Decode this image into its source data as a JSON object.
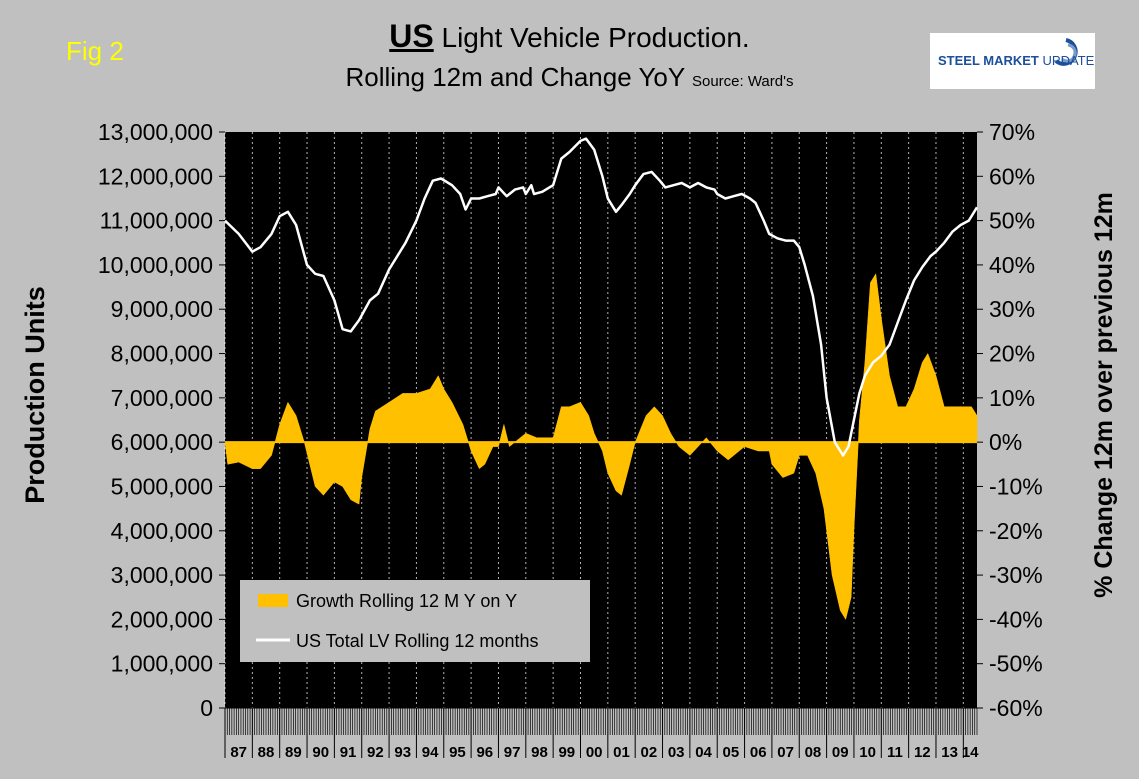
{
  "figure": {
    "label": "Fig 2",
    "title_prefix": "US",
    "title_main": "Light Vehicle Production.",
    "subtitle": "Rolling 12m and Change YoY",
    "source": "Source: Ward's",
    "logo_bold": "STEEL MARKET",
    "logo_light": "UPDATE"
  },
  "colors": {
    "background": "#c0c0c0",
    "plot_background": "#000000",
    "gridline": "#ffffff",
    "bars": "#ffc000",
    "line": "#ffffff",
    "legend_background": "#c0c0c0",
    "fig_label": "#ffff00",
    "logo_text": "#1c4f9c"
  },
  "chart_data": {
    "type": "bar+line",
    "title": "US Light Vehicle Production. Rolling 12m and Change YoY",
    "ylabel_left": "Production Units",
    "ylabel_right": "% Change 12m over previous 12m",
    "ylim_left": [
      0,
      13000000
    ],
    "ylim_right": [
      -60,
      70
    ],
    "yticks_left": [
      "0",
      "1,000,000",
      "2,000,000",
      "3,000,000",
      "4,000,000",
      "5,000,000",
      "6,000,000",
      "7,000,000",
      "8,000,000",
      "9,000,000",
      "10,000,000",
      "11,000,000",
      "12,000,000",
      "13,000,000"
    ],
    "yticks_right": [
      "-60%",
      "-50%",
      "-40%",
      "-30%",
      "-20%",
      "-10%",
      "0%",
      "10%",
      "20%",
      "30%",
      "40%",
      "50%",
      "60%",
      "70%"
    ],
    "grid": "vertical gridlines at each year",
    "x_start": 1987.0,
    "x_end": 2014.5,
    "categories": [
      "87",
      "88",
      "89",
      "90",
      "91",
      "92",
      "93",
      "94",
      "95",
      "96",
      "97",
      "98",
      "99",
      "00",
      "01",
      "02",
      "03",
      "04",
      "05",
      "06",
      "07",
      "08",
      "09",
      "10",
      "11",
      "12",
      "13",
      "14"
    ],
    "legend_position": "bottom-left",
    "series": [
      {
        "name": "Growth Rolling 12 M Y on Y",
        "kind": "bar",
        "axis": "right",
        "points": [
          [
            1987.0,
            0
          ],
          [
            1987.1,
            -5
          ],
          [
            1987.5,
            -4.5
          ],
          [
            1988.0,
            -6
          ],
          [
            1988.3,
            -6
          ],
          [
            1988.7,
            -3
          ],
          [
            1989.0,
            4
          ],
          [
            1989.3,
            9
          ],
          [
            1989.6,
            6
          ],
          [
            1989.9,
            0
          ],
          [
            1990.3,
            -10
          ],
          [
            1990.6,
            -12
          ],
          [
            1991.0,
            -9
          ],
          [
            1991.3,
            -10
          ],
          [
            1991.6,
            -13
          ],
          [
            1991.9,
            -14
          ],
          [
            1992.0,
            -8
          ],
          [
            1992.3,
            3
          ],
          [
            1992.5,
            7
          ],
          [
            1993.0,
            9
          ],
          [
            1993.5,
            11
          ],
          [
            1994.0,
            11
          ],
          [
            1994.5,
            12
          ],
          [
            1994.8,
            15
          ],
          [
            1995.0,
            12
          ],
          [
            1995.3,
            9
          ],
          [
            1995.7,
            4
          ],
          [
            1996.0,
            -2
          ],
          [
            1996.3,
            -6
          ],
          [
            1996.5,
            -5
          ],
          [
            1996.8,
            -1
          ],
          [
            1997.0,
            -1
          ],
          [
            1997.2,
            4
          ],
          [
            1997.4,
            -1
          ],
          [
            1997.8,
            1
          ],
          [
            1998.0,
            2
          ],
          [
            1998.4,
            1
          ],
          [
            1998.8,
            1
          ],
          [
            1999.0,
            1
          ],
          [
            1999.3,
            8
          ],
          [
            1999.6,
            8
          ],
          [
            2000.0,
            9
          ],
          [
            2000.3,
            6
          ],
          [
            2000.5,
            2
          ],
          [
            2000.8,
            -2
          ],
          [
            2001.0,
            -7
          ],
          [
            2001.3,
            -11
          ],
          [
            2001.5,
            -12
          ],
          [
            2001.8,
            -5
          ],
          [
            2002.0,
            0
          ],
          [
            2002.4,
            6
          ],
          [
            2002.7,
            8
          ],
          [
            2003.0,
            6
          ],
          [
            2003.3,
            2
          ],
          [
            2003.6,
            -1
          ],
          [
            2004.0,
            -3
          ],
          [
            2004.3,
            -1
          ],
          [
            2004.6,
            1
          ],
          [
            2005.0,
            -2
          ],
          [
            2005.4,
            -4
          ],
          [
            2005.8,
            -2
          ],
          [
            2006.0,
            -1
          ],
          [
            2006.5,
            -2
          ],
          [
            2006.9,
            -2
          ],
          [
            2007.0,
            -5
          ],
          [
            2007.4,
            -8
          ],
          [
            2007.8,
            -7
          ],
          [
            2008.0,
            -3
          ],
          [
            2008.3,
            -3
          ],
          [
            2008.6,
            -7
          ],
          [
            2008.9,
            -15
          ],
          [
            2009.2,
            -30
          ],
          [
            2009.5,
            -38
          ],
          [
            2009.7,
            -40
          ],
          [
            2009.9,
            -35
          ],
          [
            2010.0,
            -20
          ],
          [
            2010.2,
            5
          ],
          [
            2010.4,
            18
          ],
          [
            2010.6,
            36
          ],
          [
            2010.8,
            38
          ],
          [
            2011.0,
            28
          ],
          [
            2011.3,
            15
          ],
          [
            2011.6,
            8
          ],
          [
            2011.9,
            8
          ],
          [
            2012.2,
            12
          ],
          [
            2012.5,
            18
          ],
          [
            2012.7,
            20
          ],
          [
            2013.0,
            15
          ],
          [
            2013.3,
            8
          ],
          [
            2013.6,
            8
          ],
          [
            2014.0,
            8
          ],
          [
            2014.3,
            8
          ],
          [
            2014.5,
            6
          ]
        ]
      },
      {
        "name": "US Total LV Rolling 12 months",
        "kind": "line",
        "axis": "left",
        "points": [
          [
            1987.0,
            11000000
          ],
          [
            1987.5,
            10700000
          ],
          [
            1988.0,
            10300000
          ],
          [
            1988.3,
            10400000
          ],
          [
            1988.7,
            10700000
          ],
          [
            1989.0,
            11100000
          ],
          [
            1989.3,
            11200000
          ],
          [
            1989.6,
            10900000
          ],
          [
            1990.0,
            10000000
          ],
          [
            1990.3,
            9800000
          ],
          [
            1990.6,
            9750000
          ],
          [
            1991.0,
            9200000
          ],
          [
            1991.3,
            8550000
          ],
          [
            1991.6,
            8500000
          ],
          [
            1991.9,
            8750000
          ],
          [
            1992.3,
            9200000
          ],
          [
            1992.6,
            9350000
          ],
          [
            1993.0,
            9900000
          ],
          [
            1993.3,
            10200000
          ],
          [
            1993.6,
            10500000
          ],
          [
            1994.0,
            11000000
          ],
          [
            1994.3,
            11500000
          ],
          [
            1994.6,
            11900000
          ],
          [
            1994.9,
            11950000
          ],
          [
            1995.3,
            11800000
          ],
          [
            1995.6,
            11600000
          ],
          [
            1995.8,
            11250000
          ],
          [
            1996.0,
            11500000
          ],
          [
            1996.3,
            11500000
          ],
          [
            1996.6,
            11550000
          ],
          [
            1996.9,
            11600000
          ],
          [
            1997.0,
            11750000
          ],
          [
            1997.3,
            11550000
          ],
          [
            1997.6,
            11700000
          ],
          [
            1997.9,
            11750000
          ],
          [
            1998.0,
            11600000
          ],
          [
            1998.2,
            11800000
          ],
          [
            1998.3,
            11600000
          ],
          [
            1998.6,
            11650000
          ],
          [
            1999.0,
            11800000
          ],
          [
            1999.3,
            12400000
          ],
          [
            1999.6,
            12550000
          ],
          [
            2000.0,
            12800000
          ],
          [
            2000.2,
            12850000
          ],
          [
            2000.5,
            12600000
          ],
          [
            2000.8,
            12000000
          ],
          [
            2001.0,
            11500000
          ],
          [
            2001.3,
            11200000
          ],
          [
            2001.5,
            11350000
          ],
          [
            2001.8,
            11600000
          ],
          [
            2002.0,
            11800000
          ],
          [
            2002.3,
            12050000
          ],
          [
            2002.6,
            12100000
          ],
          [
            2002.9,
            11900000
          ],
          [
            2003.1,
            11750000
          ],
          [
            2003.4,
            11800000
          ],
          [
            2003.7,
            11850000
          ],
          [
            2004.0,
            11750000
          ],
          [
            2004.3,
            11850000
          ],
          [
            2004.6,
            11750000
          ],
          [
            2004.9,
            11700000
          ],
          [
            2005.0,
            11600000
          ],
          [
            2005.3,
            11500000
          ],
          [
            2005.6,
            11550000
          ],
          [
            2005.9,
            11600000
          ],
          [
            2006.2,
            11500000
          ],
          [
            2006.4,
            11400000
          ],
          [
            2006.7,
            11000000
          ],
          [
            2006.9,
            10700000
          ],
          [
            2007.2,
            10600000
          ],
          [
            2007.5,
            10550000
          ],
          [
            2007.8,
            10550000
          ],
          [
            2008.0,
            10400000
          ],
          [
            2008.2,
            10000000
          ],
          [
            2008.5,
            9300000
          ],
          [
            2008.8,
            8200000
          ],
          [
            2009.0,
            7000000
          ],
          [
            2009.3,
            6000000
          ],
          [
            2009.6,
            5700000
          ],
          [
            2009.8,
            5900000
          ],
          [
            2010.0,
            6500000
          ],
          [
            2010.2,
            7100000
          ],
          [
            2010.4,
            7500000
          ],
          [
            2010.7,
            7800000
          ],
          [
            2011.0,
            7950000
          ],
          [
            2011.3,
            8200000
          ],
          [
            2011.6,
            8700000
          ],
          [
            2011.9,
            9200000
          ],
          [
            2012.2,
            9650000
          ],
          [
            2012.5,
            9950000
          ],
          [
            2012.8,
            10200000
          ],
          [
            2013.0,
            10300000
          ],
          [
            2013.3,
            10500000
          ],
          [
            2013.6,
            10750000
          ],
          [
            2013.9,
            10900000
          ],
          [
            2014.2,
            11000000
          ],
          [
            2014.5,
            11300000
          ]
        ]
      }
    ]
  }
}
